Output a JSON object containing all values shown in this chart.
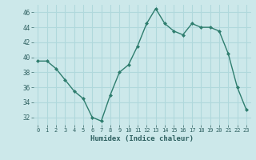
{
  "x": [
    0,
    1,
    2,
    3,
    4,
    5,
    6,
    7,
    8,
    9,
    10,
    11,
    12,
    13,
    14,
    15,
    16,
    17,
    18,
    19,
    20,
    21,
    22,
    23
  ],
  "y": [
    39.5,
    39.5,
    38.5,
    37.0,
    35.5,
    34.5,
    32.0,
    31.5,
    35.0,
    38.0,
    39.0,
    41.5,
    44.5,
    46.5,
    44.5,
    43.5,
    43.0,
    44.5,
    44.0,
    44.0,
    43.5,
    40.5,
    36.0,
    33.0
  ],
  "xlabel": "Humidex (Indice chaleur)",
  "ylim": [
    31,
    47
  ],
  "xlim": [
    -0.5,
    23.5
  ],
  "yticks": [
    32,
    34,
    36,
    38,
    40,
    42,
    44,
    46
  ],
  "xticks": [
    0,
    1,
    2,
    3,
    4,
    5,
    6,
    7,
    8,
    9,
    10,
    11,
    12,
    13,
    14,
    15,
    16,
    17,
    18,
    19,
    20,
    21,
    22,
    23
  ],
  "xtick_labels": [
    "0",
    "1",
    "2",
    "3",
    "4",
    "5",
    "6",
    "7",
    "8",
    "9",
    "10",
    "11",
    "12",
    "13",
    "14",
    "15",
    "16",
    "17",
    "18",
    "19",
    "20",
    "21",
    "22",
    "23"
  ],
  "line_color": "#2e7d6e",
  "marker_color": "#2e7d6e",
  "bg_color": "#cce8ea",
  "grid_color": "#b0d8dc",
  "font_color": "#2e6060"
}
